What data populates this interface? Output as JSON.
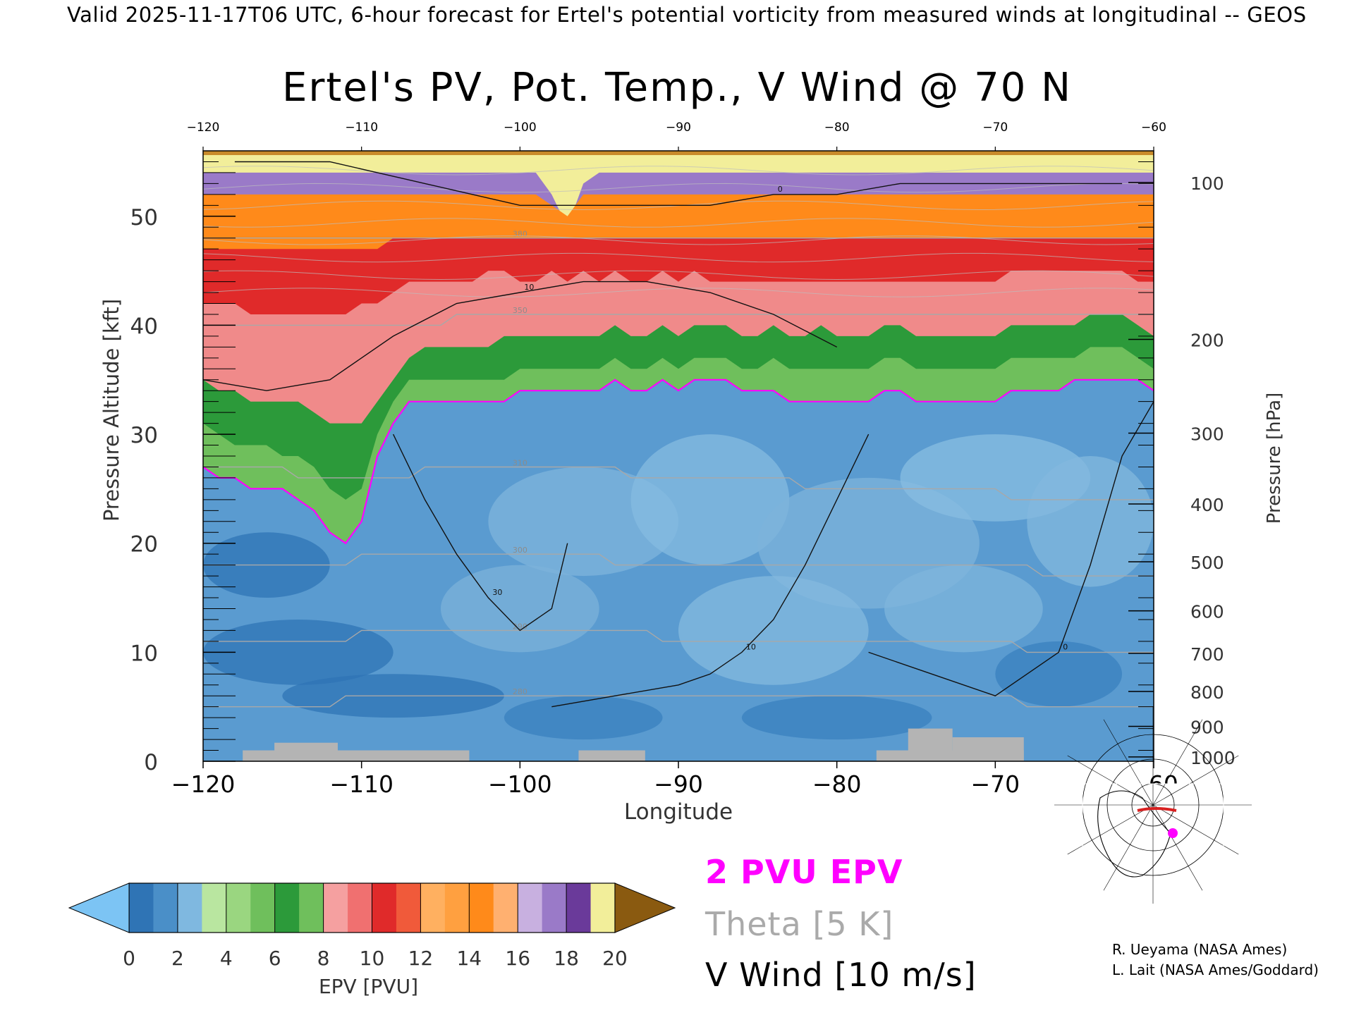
{
  "header": {
    "text": "Valid 2025-11-17T06 UTC, 6-hour forecast for Ertel's potential vorticity from measured winds at longitudinal -- GEOS"
  },
  "chart_data": {
    "type": "heatmap",
    "title": "Ertel's PV, Pot. Temp., V Wind @ 70 N",
    "xlabel": "Longitude",
    "ylabel_left": "Pressure Altitude [kft]",
    "ylabel_right": "Pressure [hPa]",
    "xlim": [
      -120,
      -60
    ],
    "ylim": [
      0,
      56
    ],
    "x_ticks": [
      -120,
      -110,
      -100,
      -90,
      -80,
      -70,
      -60
    ],
    "x_tick_labels": [
      "-120",
      "-110",
      "-100",
      "-90",
      "-80",
      "-70",
      "-60"
    ],
    "top_ticks": [
      -120,
      -110,
      -100,
      -90,
      -80,
      -70,
      -60
    ],
    "top_tick_labels": [
      "-120",
      "-110",
      "-100",
      "-90",
      "-80",
      "-70",
      "-60"
    ],
    "y_ticks": [
      0,
      10,
      20,
      30,
      40,
      50
    ],
    "y_tick_labels": [
      "0",
      "10",
      "20",
      "30",
      "40",
      "50"
    ],
    "pressure_ticks": [
      {
        "hpa": "100",
        "kft": 53.1
      },
      {
        "hpa": "200",
        "kft": 38.7
      },
      {
        "hpa": "300",
        "kft": 30.1
      },
      {
        "hpa": "400",
        "kft": 23.6
      },
      {
        "hpa": "500",
        "kft": 18.3
      },
      {
        "hpa": "600",
        "kft": 13.8
      },
      {
        "hpa": "700",
        "kft": 9.9
      },
      {
        "hpa": "800",
        "kft": 6.4
      },
      {
        "hpa": "900",
        "kft": 3.2
      },
      {
        "hpa": "1000",
        "kft": 0.4
      }
    ],
    "pv_layers": [
      {
        "top": [
          27,
          26,
          26,
          25,
          25,
          25,
          24,
          23,
          21,
          20,
          22,
          28,
          31,
          33,
          33,
          33,
          33,
          33,
          33,
          33,
          34,
          34,
          34,
          34,
          34,
          34,
          35,
          34,
          34,
          35,
          34,
          35,
          35,
          35,
          34,
          34,
          34,
          33,
          33,
          33,
          33,
          33,
          33,
          34,
          34,
          33,
          33,
          33,
          33,
          33,
          33,
          34,
          34,
          34,
          34,
          35,
          35,
          35,
          35,
          35,
          34
        ],
        "color": "#3d8ac4"
      },
      {
        "top": [
          31,
          30,
          29,
          29,
          29,
          28,
          28,
          27,
          25,
          24,
          25,
          30,
          33,
          35,
          35,
          35,
          35,
          35,
          35,
          35,
          36,
          36,
          36,
          36,
          36,
          36,
          37,
          36,
          36,
          37,
          36,
          37,
          37,
          37,
          36,
          36,
          37,
          36,
          36,
          36,
          36,
          36,
          36,
          37,
          37,
          36,
          36,
          36,
          36,
          36,
          36,
          37,
          37,
          37,
          37,
          37,
          38,
          38,
          38,
          37,
          36
        ],
        "color": "#6fbf5c"
      },
      {
        "top": [
          35,
          34,
          34,
          33,
          33,
          33,
          33,
          32,
          31,
          31,
          31,
          33,
          35,
          37,
          38,
          38,
          38,
          38,
          38,
          39,
          39,
          39,
          39,
          39,
          39,
          39,
          40,
          39,
          39,
          40,
          39,
          40,
          40,
          40,
          39,
          39,
          40,
          39,
          39,
          40,
          39,
          39,
          39,
          40,
          40,
          39,
          39,
          39,
          39,
          39,
          39,
          40,
          40,
          40,
          40,
          40,
          41,
          41,
          41,
          40,
          39
        ],
        "color": "#2c9a3a"
      },
      {
        "top": [
          42,
          42,
          42,
          41,
          41,
          41,
          41,
          41,
          41,
          41,
          42,
          42,
          43,
          44,
          44,
          44,
          44,
          44,
          45,
          45,
          44,
          44,
          45,
          44,
          45,
          44,
          45,
          44,
          44,
          45,
          44,
          45,
          44,
          44,
          44,
          44,
          44,
          44,
          44,
          44,
          44,
          44,
          44,
          44,
          44,
          44,
          44,
          44,
          44,
          44,
          44,
          45,
          45,
          45,
          45,
          45,
          45,
          45,
          45,
          44,
          44
        ],
        "color": "#f08a8a"
      },
      {
        "top": [
          47,
          47,
          47,
          47,
          47,
          47,
          47,
          47,
          47,
          47,
          47,
          47,
          48,
          48,
          48,
          48,
          48,
          48,
          48,
          48,
          48,
          48,
          48,
          48,
          48,
          48,
          48,
          48,
          48,
          48,
          48,
          48,
          48,
          48,
          48,
          48,
          48,
          48,
          48,
          48,
          48,
          48,
          48,
          48,
          48,
          48,
          48,
          48,
          48,
          48,
          48,
          48,
          48,
          48,
          48,
          48,
          48,
          48,
          48,
          48,
          48
        ],
        "color": "#e02a2a"
      },
      {
        "top": [
          52,
          52,
          52,
          52,
          52,
          52,
          52,
          52,
          52,
          52,
          52,
          52,
          52,
          52,
          52,
          52,
          52,
          52,
          52,
          52,
          52,
          52,
          51,
          50,
          52,
          52,
          52,
          52,
          52,
          52,
          52,
          52,
          52,
          52,
          52,
          52,
          52,
          52,
          52,
          52,
          52,
          52,
          52,
          52,
          52,
          52,
          52,
          52,
          52,
          52,
          52,
          52,
          52,
          52,
          52,
          52,
          52,
          52,
          52,
          52,
          52
        ],
        "color": "#ff8a1a"
      },
      {
        "top": [
          54,
          54,
          54,
          54,
          54,
          54,
          54,
          54,
          54,
          54,
          54,
          54,
          54,
          54,
          54,
          54,
          54,
          54,
          54,
          54,
          54,
          54,
          52,
          49,
          53,
          54,
          54,
          54,
          54,
          54,
          54,
          54,
          54,
          54,
          54,
          54,
          54,
          54,
          54,
          54,
          54,
          54,
          54,
          54,
          54,
          54,
          54,
          54,
          54,
          54,
          54,
          54,
          54,
          54,
          54,
          54,
          54,
          54,
          54,
          54,
          54
        ],
        "color": "#9a7ac8"
      },
      {
        "top": [
          56,
          56,
          56,
          56,
          56,
          56,
          56,
          56,
          56,
          56,
          56,
          56,
          56,
          56,
          56,
          56,
          56,
          56,
          56,
          56,
          56,
          56,
          56,
          56,
          56,
          56,
          56,
          56,
          56,
          56,
          56,
          56,
          56,
          56,
          56,
          56,
          56,
          56,
          56,
          56,
          56,
          56,
          56,
          56,
          56,
          56,
          56,
          56,
          56,
          56,
          56,
          56,
          56,
          56,
          56,
          56,
          56,
          56,
          56,
          56,
          56
        ],
        "color": "#f2ee9a"
      }
    ],
    "pv_2_contour_kft": [
      27,
      26,
      26,
      25,
      25,
      25,
      24,
      23,
      21,
      20,
      22,
      28,
      31,
      33,
      33,
      33,
      33,
      33,
      33,
      33,
      34,
      34,
      34,
      34,
      34,
      34,
      35,
      34,
      34,
      35,
      34,
      35,
      35,
      35,
      34,
      34,
      34,
      33,
      33,
      33,
      33,
      33,
      33,
      34,
      34,
      33,
      33,
      33,
      33,
      33,
      33,
      34,
      34,
      34,
      34,
      35,
      35,
      35,
      35,
      35,
      34
    ],
    "theta_isentropes": [
      {
        "label": "310",
        "kft": [
          27,
          27,
          27,
          27,
          27,
          27,
          26,
          26,
          26,
          26,
          26,
          26,
          26,
          26,
          27,
          27,
          27,
          27,
          27,
          27,
          27,
          27,
          27,
          27,
          27,
          27,
          27,
          26,
          26,
          26,
          26,
          26,
          26,
          26,
          26,
          26,
          26,
          26,
          25,
          25,
          25,
          25,
          25,
          25,
          25,
          25,
          25,
          25,
          25,
          25,
          25,
          24,
          24,
          24,
          24,
          24,
          24,
          24,
          24,
          24,
          24
        ]
      },
      {
        "label": "300",
        "kft": [
          18,
          18,
          18,
          18,
          18,
          18,
          18,
          18,
          18,
          18,
          19,
          19,
          19,
          19,
          19,
          19,
          19,
          19,
          19,
          19,
          19,
          19,
          19,
          19,
          19,
          19,
          18,
          18,
          18,
          18,
          18,
          18,
          18,
          18,
          18,
          18,
          18,
          18,
          18,
          18,
          18,
          18,
          18,
          18,
          18,
          18,
          18,
          18,
          18,
          18,
          18,
          18,
          18,
          17,
          17,
          17,
          17,
          17,
          17,
          17,
          17
        ]
      },
      {
        "label": "290",
        "kft": [
          11,
          11,
          11,
          11,
          11,
          11,
          11,
          11,
          11,
          11,
          12,
          12,
          12,
          12,
          12,
          12,
          12,
          12,
          12,
          12,
          12,
          12,
          12,
          12,
          12,
          12,
          12,
          12,
          12,
          11,
          11,
          11,
          11,
          11,
          11,
          11,
          11,
          11,
          11,
          11,
          11,
          11,
          11,
          11,
          11,
          11,
          11,
          11,
          11,
          11,
          11,
          11,
          10,
          10,
          10,
          10,
          10,
          10,
          10,
          10,
          10
        ]
      },
      {
        "label": "280",
        "kft": [
          5,
          5,
          5,
          5,
          5,
          5,
          5,
          5,
          5,
          6,
          6,
          6,
          6,
          6,
          6,
          6,
          6,
          6,
          6,
          6,
          6,
          6,
          6,
          6,
          6,
          6,
          6,
          6,
          6,
          6,
          6,
          6,
          6,
          6,
          6,
          6,
          6,
          6,
          6,
          6,
          6,
          6,
          6,
          6,
          6,
          6,
          6,
          6,
          6,
          6,
          6,
          6,
          5,
          5,
          5,
          5,
          5,
          5,
          5,
          5,
          5
        ]
      },
      {
        "label": "350",
        "kft": [
          40,
          40,
          40,
          40,
          40,
          40,
          40,
          40,
          40,
          40,
          40,
          40,
          40,
          40,
          40,
          40,
          41,
          41,
          41,
          41,
          41,
          41,
          41,
          41,
          41,
          41,
          41,
          41,
          41,
          41,
          41,
          41,
          41,
          41,
          41,
          41,
          41,
          41,
          41,
          41,
          41,
          41,
          41,
          41,
          41,
          41,
          41,
          41,
          41,
          41,
          41,
          41,
          41,
          41,
          41,
          41,
          41,
          41,
          41,
          41,
          41
        ]
      },
      {
        "label": "380",
        "kft": [
          48,
          48,
          48,
          48,
          48,
          48,
          48,
          48,
          48,
          48,
          48,
          48,
          48,
          48,
          48,
          48,
          48,
          48,
          48,
          48,
          48,
          48,
          48,
          48,
          48,
          48,
          48,
          48,
          48,
          48,
          48,
          48,
          48,
          48,
          48,
          48,
          48,
          48,
          48,
          48,
          48,
          48,
          48,
          48,
          48,
          48,
          48,
          48,
          48,
          48,
          48,
          48,
          48,
          48,
          48,
          48,
          48,
          48,
          48,
          48,
          48
        ]
      }
    ],
    "v_wind_contours": [
      {
        "label": "0",
        "x": [
          -118,
          -112,
          -106,
          -100,
          -94,
          -88,
          -84,
          -80,
          -76,
          -72,
          -68,
          -64,
          -62
        ],
        "kft": [
          55,
          55,
          53,
          51,
          51,
          51,
          52,
          52,
          53,
          53,
          53,
          53,
          53
        ]
      },
      {
        "label": "10",
        "x": [
          -120,
          -116,
          -112,
          -108,
          -104,
          -100,
          -96,
          -92,
          -88,
          -84,
          -80
        ],
        "kft": [
          35,
          34,
          35,
          39,
          42,
          43,
          44,
          44,
          43,
          41,
          38
        ]
      },
      {
        "label": "10",
        "x": [
          -98,
          -94,
          -90,
          -88,
          -86,
          -84,
          -82,
          -80,
          -78
        ],
        "kft": [
          5,
          6,
          7,
          8,
          10,
          13,
          18,
          24,
          30
        ]
      },
      {
        "label": "30",
        "x": [
          -108,
          -106,
          -104,
          -102,
          -100,
          -98,
          -97
        ],
        "kft": [
          30,
          24,
          19,
          15,
          12,
          14,
          20
        ]
      },
      {
        "label": "0",
        "x": [
          -78,
          -74,
          -70,
          -66,
          -64,
          -62,
          -60
        ],
        "kft": [
          10,
          8,
          6,
          10,
          18,
          28,
          33
        ]
      }
    ],
    "colorbar": {
      "label": "EPV [PVU]",
      "min": 0,
      "max": 20,
      "ticks": [
        "0",
        "2",
        "4",
        "6",
        "8",
        "10",
        "12",
        "14",
        "16",
        "18",
        "20"
      ],
      "colors": [
        "#2f74b5",
        "#7fb8e0",
        "#b9e6a0",
        "#7fcc6a",
        "#2c9a3a",
        "#f5a0a0",
        "#e83a3a",
        "#ffb060",
        "#ff8a1a",
        "#c8b0e0",
        "#6a3a9a",
        "#f2ee9a",
        "#8a5a10"
      ],
      "low_color": "#7cc4f4",
      "high_color": "#8a5a10"
    },
    "legend": {
      "pv": "2 PVU EPV",
      "theta": "Theta [5 K]",
      "wind": "V Wind [10 m/s]",
      "pv_color": "#ff00ff",
      "theta_color": "#aaaaaa",
      "wind_color": "#000000"
    }
  },
  "credits": {
    "line1": "R. Ueyama (NASA Ames)",
    "line2": "L. Lait (NASA Ames/Goddard)"
  }
}
